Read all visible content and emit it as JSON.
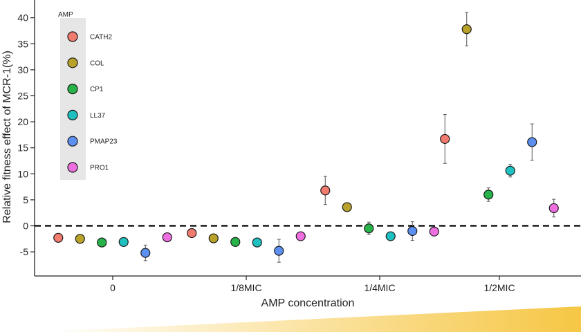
{
  "chart_data": {
    "type": "scatter",
    "title": "",
    "xlabel": "AMP concentration",
    "ylabel": "Relative fitness effect of MCR-1(%)",
    "ylim": [
      -9.5,
      43
    ],
    "yticks": [
      -5,
      0,
      5,
      10,
      15,
      20,
      25,
      30,
      35,
      40
    ],
    "categories": [
      "0",
      "1/8MIC",
      "1/4MIC",
      "1/2MIC"
    ],
    "reference_line": {
      "y": 0,
      "style": "dashed"
    },
    "grid": false,
    "legend": {
      "title": "AMP",
      "position": "top-left",
      "background": "#e6e6e6"
    },
    "error_bars": true,
    "concentration_ramp": {
      "from": "#ffffff",
      "to": "#f6c745"
    },
    "series": [
      {
        "name": "CATH2",
        "color": "#f07b6e",
        "points": [
          {
            "x": "0",
            "y": -2.3,
            "err": 0.8
          },
          {
            "x": "1/8MIC",
            "y": -1.4,
            "err": 0.7
          },
          {
            "x": "1/4MIC",
            "y": 6.8,
            "err": 2.7
          },
          {
            "x": "1/2MIC",
            "y": 16.7,
            "err": 4.7
          }
        ]
      },
      {
        "name": "COL",
        "color": "#b8a22a",
        "points": [
          {
            "x": "0",
            "y": -2.5,
            "err": 0.5
          },
          {
            "x": "1/8MIC",
            "y": -2.4,
            "err": 0.6
          },
          {
            "x": "1/4MIC",
            "y": 3.6,
            "err": 0.5
          },
          {
            "x": "1/2MIC",
            "y": 37.8,
            "err": 3.2
          }
        ]
      },
      {
        "name": "CP1",
        "color": "#27b24a",
        "points": [
          {
            "x": "0",
            "y": -3.2,
            "err": 0.5
          },
          {
            "x": "1/8MIC",
            "y": -3.1,
            "err": 0.4
          },
          {
            "x": "1/4MIC",
            "y": -0.5,
            "err": 1.2
          },
          {
            "x": "1/2MIC",
            "y": 6.0,
            "err": 1.3
          }
        ]
      },
      {
        "name": "LL37",
        "color": "#1fc0c0",
        "points": [
          {
            "x": "0",
            "y": -3.1,
            "err": 0.5
          },
          {
            "x": "1/8MIC",
            "y": -3.2,
            "err": 0.5
          },
          {
            "x": "1/4MIC",
            "y": -2.0,
            "err": 0.6
          },
          {
            "x": "1/2MIC",
            "y": 10.6,
            "err": 1.2
          }
        ]
      },
      {
        "name": "PMAP23",
        "color": "#5c8ff0",
        "points": [
          {
            "x": "0",
            "y": -5.2,
            "err": 1.5
          },
          {
            "x": "1/8MIC",
            "y": -4.8,
            "err": 2.2
          },
          {
            "x": "1/4MIC",
            "y": -1.0,
            "err": 1.8
          },
          {
            "x": "1/2MIC",
            "y": 16.1,
            "err": 3.5
          }
        ]
      },
      {
        "name": "PRO1",
        "color": "#ee6fe0",
        "points": [
          {
            "x": "0",
            "y": -2.2,
            "err": 0.5
          },
          {
            "x": "1/8MIC",
            "y": -2.0,
            "err": 0.5
          },
          {
            "x": "1/4MIC",
            "y": -1.1,
            "err": 0.5
          },
          {
            "x": "1/2MIC",
            "y": 3.4,
            "err": 1.7
          }
        ]
      }
    ]
  }
}
